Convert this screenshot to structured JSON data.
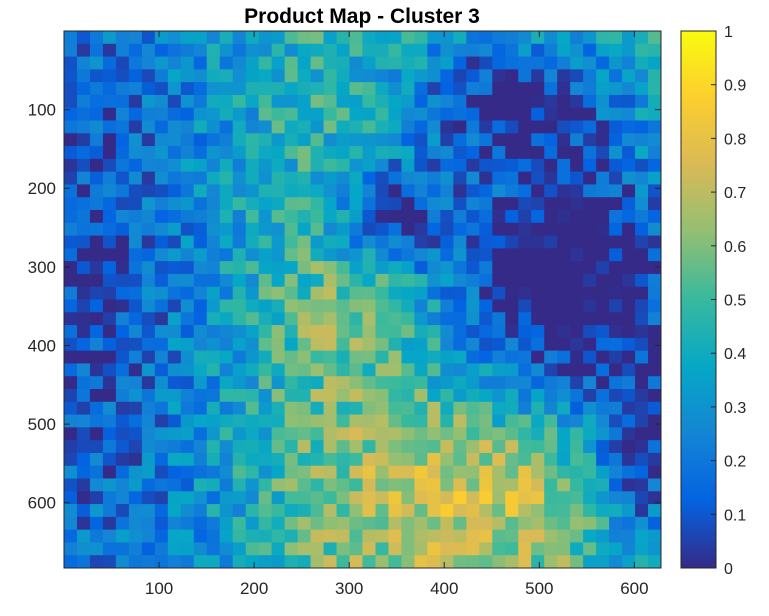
{
  "chart_data": {
    "type": "heatmap",
    "title": "Product Map - Cluster 3",
    "xlabel": "",
    "ylabel": "",
    "xlim": [
      0,
      628
    ],
    "ylim": [
      0,
      683
    ],
    "y_reversed": true,
    "x_ticks": [
      100,
      200,
      300,
      400,
      500,
      600
    ],
    "y_ticks": [
      100,
      200,
      300,
      400,
      500,
      600
    ],
    "colorbar": {
      "colormap": "parula",
      "range": [
        0,
        1
      ],
      "ticks": [
        0,
        0.1,
        0.2,
        0.3,
        0.4,
        0.5,
        0.6,
        0.7,
        0.8,
        0.9,
        1
      ],
      "tick_labels": [
        "0",
        "0.1",
        "0.2",
        "0.3",
        "0.4",
        "0.5",
        "0.6",
        "0.7",
        "0.8",
        "0.9",
        "1"
      ],
      "placement": "right"
    },
    "grid": false,
    "regions": {
      "left_band": {
        "x_range": [
          0,
          140
        ],
        "value_approx": 0.2
      },
      "dark_region_right": {
        "x_range": [
          380,
          628
        ],
        "y_range": [
          150,
          520
        ],
        "value_approx": 0.02
      },
      "bottom_center_hot": {
        "x_range": [
          300,
          560
        ],
        "y_range": [
          480,
          683
        ],
        "value_approx": 0.7
      }
    }
  },
  "colors": {
    "parula": [
      "#352a87",
      "#0363e1",
      "#1485d4",
      "#06a7c6",
      "#38b99e",
      "#92bf73",
      "#d9ba56",
      "#fcce2e",
      "#f9fb0e"
    ]
  }
}
